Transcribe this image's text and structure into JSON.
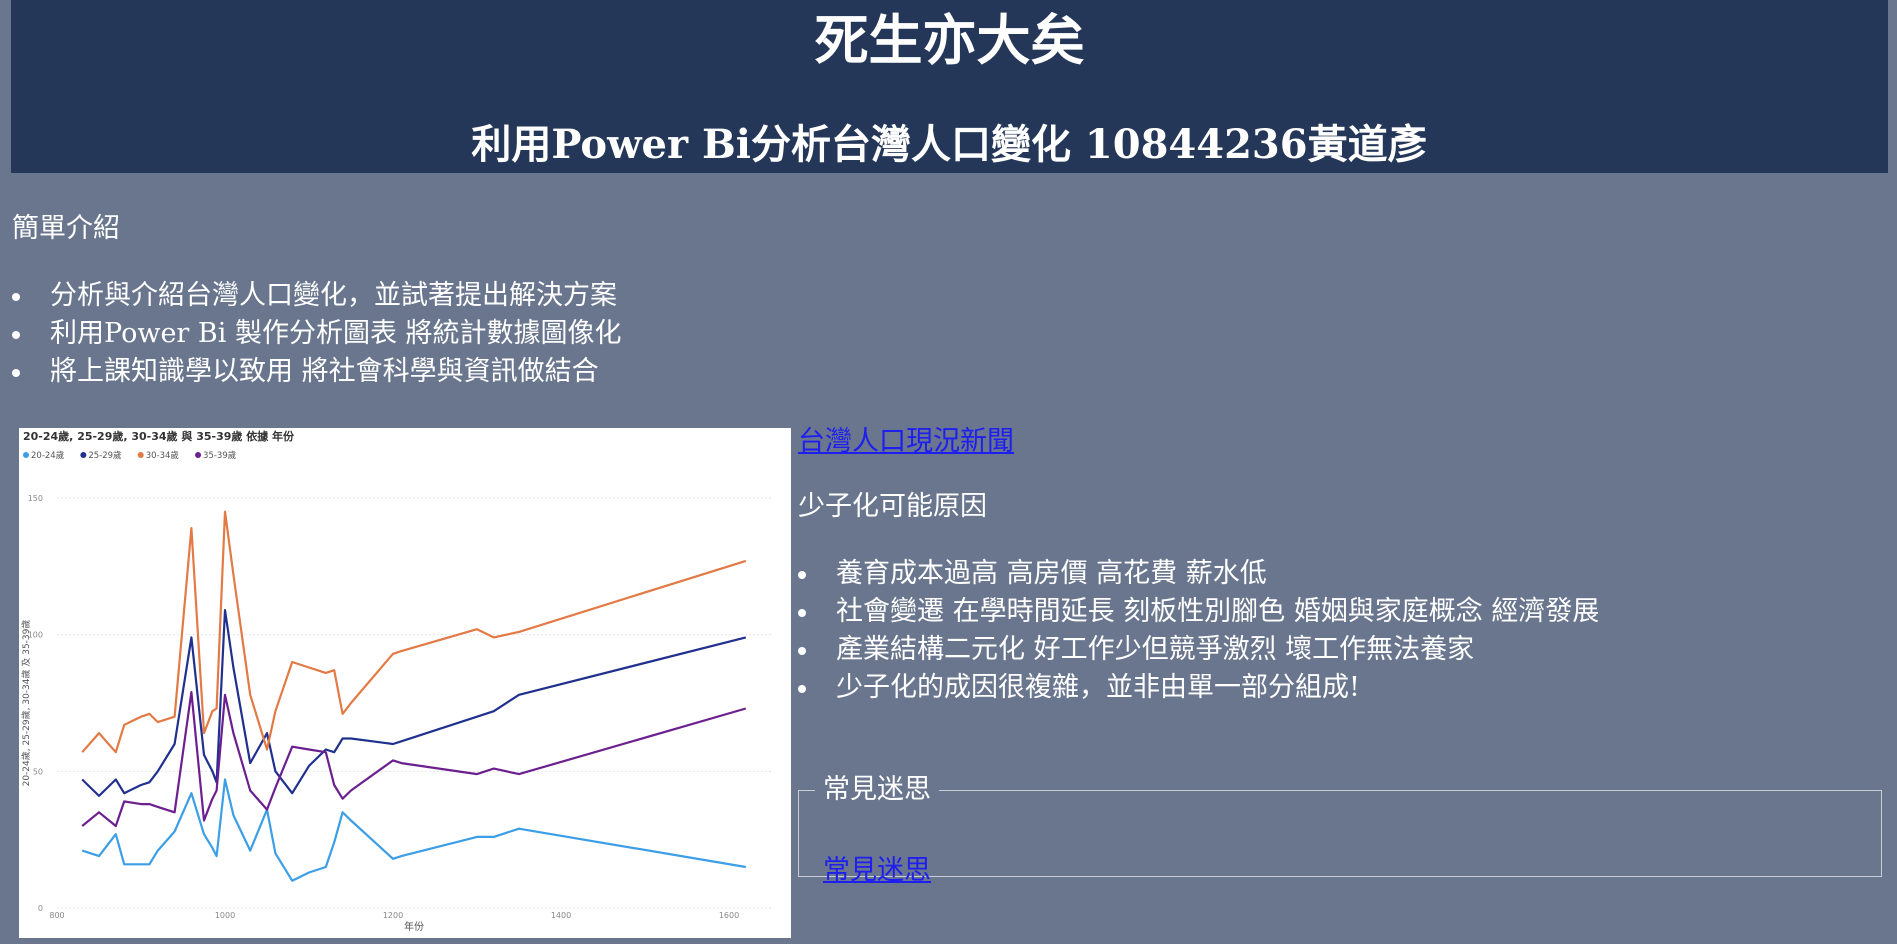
{
  "header": {
    "title": "死生亦大矣",
    "subtitle": "利用Power Bi分析台灣人口變化 10844236黃道彥"
  },
  "intro": {
    "title": "簡單介紹",
    "items": [
      "分析與介紹台灣人口變化，並試著提出解決方案",
      "利用Power Bi 製作分析圖表 將統計數據圖像化",
      "將上課知識學以致用 將社會科學與資訊做結合"
    ]
  },
  "news_link": "台灣人口現況新聞",
  "reasons": {
    "title": "少子化可能原因",
    "items": [
      "養育成本過高 高房價 高花費 薪水低",
      "社會變遷 在學時間延長 刻板性別腳色 婚姻與家庭概念 經濟發展",
      "產業結構二元化 好工作少但競爭激烈 壞工作無法養家",
      "少子化的成因很複雜，並非由單一部分組成!"
    ]
  },
  "myths": {
    "legend": "常見迷思",
    "link": "常見迷思"
  },
  "chart_data": {
    "type": "line",
    "title": "20-24歲, 25-29歲, 30-34歲 與 35-39歲 依據 年份",
    "xlabel": "年份",
    "ylabel": "20-24歲, 25-29歲, 30-34歲 及 35-39歲",
    "xlim": [
      800,
      1650
    ],
    "ylim": [
      0,
      150
    ],
    "x_ticks": [
      "800",
      "1000",
      "1200",
      "1400",
      "1600"
    ],
    "y_ticks": [
      "0",
      "50",
      "100",
      "150"
    ],
    "grid": true,
    "legend_position": "top-left",
    "x": [
      830,
      850,
      870,
      880,
      900,
      910,
      920,
      940,
      960,
      975,
      985,
      990,
      1000,
      1010,
      1030,
      1050,
      1060,
      1080,
      1100,
      1120,
      1130,
      1140,
      1150,
      1200,
      1210,
      1300,
      1320,
      1350,
      1620
    ],
    "series": [
      {
        "name": "20-24歲",
        "color": "#3c9ee6",
        "values": [
          21,
          19,
          27,
          16,
          16,
          16,
          21,
          28,
          42,
          27,
          22,
          19,
          47,
          34,
          21,
          36,
          20,
          10,
          13,
          15,
          24,
          35,
          32,
          18,
          19,
          26,
          26,
          29,
          15
        ]
      },
      {
        "name": "25-29歲",
        "color": "#20308e",
        "values": [
          47,
          41,
          47,
          42,
          45,
          46,
          50,
          60,
          99,
          56,
          50,
          46,
          109,
          88,
          53,
          64,
          50,
          42,
          52,
          58,
          57,
          62,
          62,
          60,
          61,
          70,
          72,
          78,
          99
        ]
      },
      {
        "name": "30-34歲",
        "color": "#e37a45",
        "values": [
          57,
          64,
          57,
          67,
          70,
          71,
          68,
          70,
          139,
          64,
          72,
          73,
          145,
          122,
          78,
          58,
          72,
          90,
          88,
          86,
          87,
          71,
          75,
          93,
          94,
          102,
          99,
          101,
          127
        ]
      },
      {
        "name": "35-39歲",
        "color": "#6c1f8e",
        "values": [
          30,
          35,
          30,
          39,
          38,
          38,
          37,
          35,
          79,
          32,
          40,
          43,
          78,
          64,
          43,
          36,
          44,
          59,
          58,
          57,
          45,
          40,
          43,
          54,
          53,
          49,
          51,
          49,
          73
        ]
      }
    ]
  }
}
